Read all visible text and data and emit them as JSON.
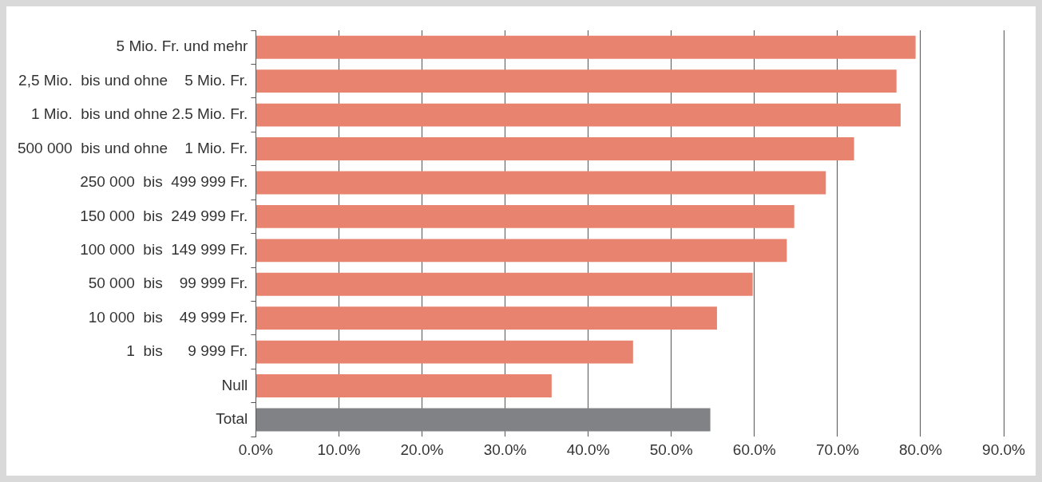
{
  "chart_data": {
    "type": "bar",
    "orientation": "horizontal",
    "categories": [
      "5 Mio. Fr. und mehr",
      "2,5 Mio.  bis und ohne    5 Mio. Fr.",
      "1 Mio.  bis und ohne 2.5 Mio. Fr.",
      "500 000  bis und ohne    1 Mio. Fr.",
      "250 000  bis  499 999 Fr.",
      "150 000  bis  249 999 Fr.",
      "100 000  bis  149 999 Fr.",
      "50 000  bis    99 999 Fr.",
      "10 000  bis    49 999 Fr.",
      "1  bis      9 999 Fr.",
      "Null",
      "Total"
    ],
    "values": [
      79.4,
      77.1,
      77.6,
      72.0,
      68.6,
      64.8,
      63.9,
      59.8,
      55.5,
      45.4,
      35.6,
      54.7
    ],
    "colors": [
      "#e8836f",
      "#e8836f",
      "#e8836f",
      "#e8836f",
      "#e8836f",
      "#e8836f",
      "#e8836f",
      "#e8836f",
      "#e8836f",
      "#e8836f",
      "#e8836f",
      "#818285"
    ],
    "xlim": [
      0,
      90
    ],
    "xticks": [
      {
        "value": 0,
        "label": "0.0%"
      },
      {
        "value": 10,
        "label": "10.0%"
      },
      {
        "value": 20,
        "label": "20.0%"
      },
      {
        "value": 30,
        "label": "30.0%"
      },
      {
        "value": 40,
        "label": "40.0%"
      },
      {
        "value": 50,
        "label": "50.0%"
      },
      {
        "value": 60,
        "label": "60.0%"
      },
      {
        "value": 70,
        "label": "70.0%"
      },
      {
        "value": 80,
        "label": "80.0%"
      },
      {
        "value": 90,
        "label": "90.0%"
      }
    ],
    "grid": "x",
    "legend": false
  }
}
